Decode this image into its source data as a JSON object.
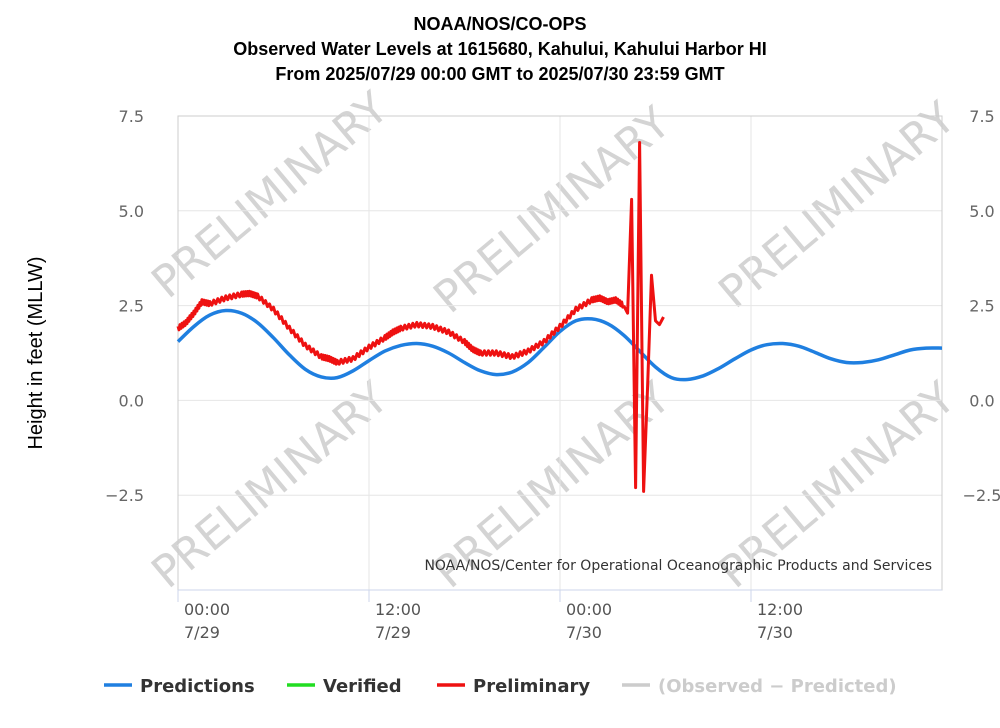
{
  "chart_data": {
    "type": "line",
    "title": [
      "NOAA/NOS/CO-OPS",
      "Observed Water Levels at 1615680, Kahului, Kahului Harbor HI",
      "From 2025/07/29 00:00 GMT to 2025/07/30 23:59 GMT"
    ],
    "ylabel": "Height in feet (MLLW)",
    "credit": "NOAA/NOS/Center for Operational Oceanographic Products and Services",
    "watermark": "PRELIMINARY",
    "xlim_hours": [
      0,
      48
    ],
    "ylim": [
      -5,
      7.5
    ],
    "yticks": [
      {
        "value": 7.5,
        "label": "7.5"
      },
      {
        "value": 5.0,
        "label": "5.0"
      },
      {
        "value": 2.5,
        "label": "2.5"
      },
      {
        "value": 0.0,
        "label": "0.0"
      },
      {
        "value": -2.5,
        "label": "−2.5"
      }
    ],
    "xticks": [
      {
        "hour": 0,
        "time": "00:00",
        "date": "7/29"
      },
      {
        "hour": 12,
        "time": "12:00",
        "date": "7/29"
      },
      {
        "hour": 24,
        "time": "00:00",
        "date": "7/30"
      },
      {
        "hour": 36,
        "time": "12:00",
        "date": "7/30"
      }
    ],
    "grid": true,
    "legend_position": "bottom",
    "series": [
      {
        "name": "Predictions",
        "color": "#1f7fe0",
        "x_hours": [
          0,
          1,
          2,
          3,
          4,
          5,
          6,
          7,
          8,
          9,
          10,
          11,
          12,
          13,
          14,
          15,
          16,
          17,
          18,
          19,
          20,
          21,
          22,
          23,
          24,
          25,
          26,
          27,
          28,
          29,
          30,
          31,
          32,
          33,
          34,
          35,
          36,
          37,
          38,
          39,
          40,
          41,
          42,
          43,
          44,
          45,
          46,
          47,
          48
        ],
        "values": [
          1.55,
          1.95,
          2.25,
          2.37,
          2.3,
          2.05,
          1.65,
          1.2,
          0.82,
          0.62,
          0.6,
          0.78,
          1.05,
          1.3,
          1.45,
          1.5,
          1.43,
          1.25,
          1.0,
          0.78,
          0.68,
          0.75,
          1.0,
          1.4,
          1.82,
          2.1,
          2.15,
          2.02,
          1.72,
          1.3,
          0.88,
          0.6,
          0.55,
          0.65,
          0.85,
          1.1,
          1.33,
          1.47,
          1.5,
          1.43,
          1.27,
          1.1,
          1.0,
          1.0,
          1.07,
          1.2,
          1.33,
          1.38,
          1.38
        ]
      },
      {
        "name": "Verified",
        "color": "#22dd22",
        "x_hours": [],
        "values": []
      },
      {
        "name": "Preliminary",
        "color": "#ee1111",
        "x_hours": [
          0,
          0.5,
          1,
          1.5,
          2,
          3,
          4,
          4.5,
          5,
          6,
          7,
          8,
          9,
          9.5,
          10,
          11,
          12,
          13,
          13.5,
          14,
          15,
          16,
          17,
          18,
          18.5,
          19,
          20,
          21,
          22,
          23,
          24,
          25,
          26,
          26.5,
          27,
          27.5,
          28,
          28.25,
          28.5,
          28.75,
          29,
          29.25,
          29.5,
          29.75,
          30,
          30.25,
          30.5
        ],
        "values": [
          1.9,
          2.05,
          2.3,
          2.6,
          2.55,
          2.7,
          2.8,
          2.82,
          2.75,
          2.4,
          1.9,
          1.45,
          1.15,
          1.1,
          1.0,
          1.1,
          1.4,
          1.65,
          1.8,
          1.9,
          2.0,
          1.95,
          1.8,
          1.55,
          1.35,
          1.25,
          1.25,
          1.15,
          1.3,
          1.55,
          1.95,
          2.4,
          2.65,
          2.7,
          2.6,
          2.65,
          2.5,
          2.3,
          5.3,
          -2.3,
          6.8,
          -2.4,
          0.3,
          3.3,
          2.1,
          2.0,
          2.2
        ]
      },
      {
        "name": "(Observed − Predicted)",
        "color": "#cccccc",
        "x_hours": [],
        "values": []
      }
    ]
  }
}
